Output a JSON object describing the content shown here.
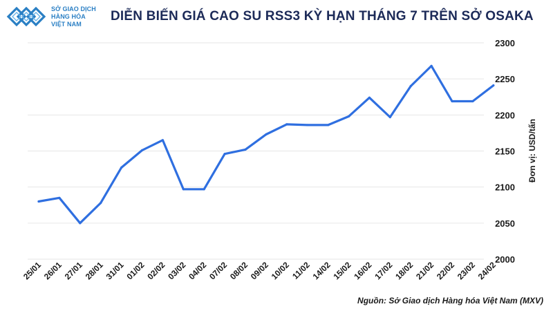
{
  "header": {
    "logo_line1": "SỞ GIAO DỊCH",
    "logo_line2": "HÀNG HÓA",
    "logo_line3": "VIỆT NAM",
    "title": "DIỄN BIẾN GIÁ CAO SU RSS3 KỲ HẠN THÁNG 7 TRÊN SỞ OSAKA"
  },
  "source": "Nguồn: Sở Giao dịch Hàng hóa Việt Nam (MXV)",
  "colors": {
    "line": "#2f6fe0",
    "title": "#1c2a58",
    "logo": "#2a7fc4",
    "grid": "#e6e6e6"
  },
  "chart_data": {
    "type": "line",
    "categories": [
      "25/01",
      "26/01",
      "27/01",
      "28/01",
      "31/01",
      "01/02",
      "02/02",
      "03/02",
      "04/02",
      "07/02",
      "08/02",
      "09/02",
      "10/02",
      "11/02",
      "14/02",
      "15/02",
      "16/02",
      "17/02",
      "18/02",
      "21/02",
      "22/02",
      "23/02",
      "24/02"
    ],
    "values": [
      2080,
      2085,
      2050,
      2078,
      2127,
      2151,
      2165,
      2097,
      2097,
      2146,
      2152,
      2173,
      2187,
      2186,
      2186,
      2198,
      2224,
      2197,
      2240,
      2268,
      2219,
      2219,
      2241
    ],
    "ylabel": "Đơn vị: USD/tấn",
    "ylim": [
      2000,
      2300
    ],
    "yticks": [
      2000,
      2050,
      2100,
      2150,
      2200,
      2250,
      2300
    ],
    "y_axis_side": "right",
    "grid": true
  }
}
